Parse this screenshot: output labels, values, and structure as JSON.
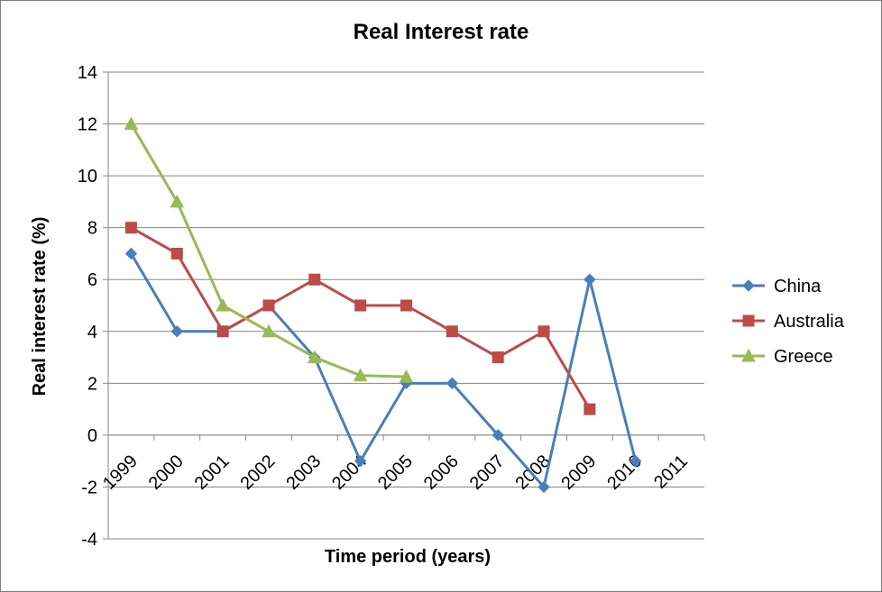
{
  "chart_data": {
    "type": "line",
    "title": "Real Interest rate",
    "xlabel": "Time period (years)",
    "ylabel": "Real interest rate (%)",
    "categories": [
      "1999",
      "2000",
      "2001",
      "2002",
      "2003",
      "2004",
      "2005",
      "2006",
      "2007",
      "2008",
      "2009",
      "2010",
      "2011"
    ],
    "ylim": [
      -4,
      14
    ],
    "yticks": [
      "14",
      "12",
      "10",
      "8",
      "6",
      "4",
      "2",
      "0",
      "-2",
      "-4"
    ],
    "grid": true,
    "legend_position": "right",
    "series": [
      {
        "name": "China",
        "color": "#4a7ebb",
        "marker": "diamond",
        "values": [
          7,
          4,
          4,
          5,
          3,
          -1,
          2,
          2,
          0,
          -2,
          6,
          -1,
          null
        ]
      },
      {
        "name": "Australia",
        "color": "#be4b48",
        "marker": "square",
        "values": [
          8,
          7,
          4,
          5,
          6,
          5,
          5,
          4,
          3,
          4,
          1,
          null,
          null
        ]
      },
      {
        "name": "Greece",
        "color": "#98b954",
        "marker": "triangle",
        "values": [
          12,
          9,
          5,
          4,
          3,
          2.3,
          2.25,
          null,
          null,
          null,
          null,
          null,
          null
        ]
      }
    ]
  }
}
